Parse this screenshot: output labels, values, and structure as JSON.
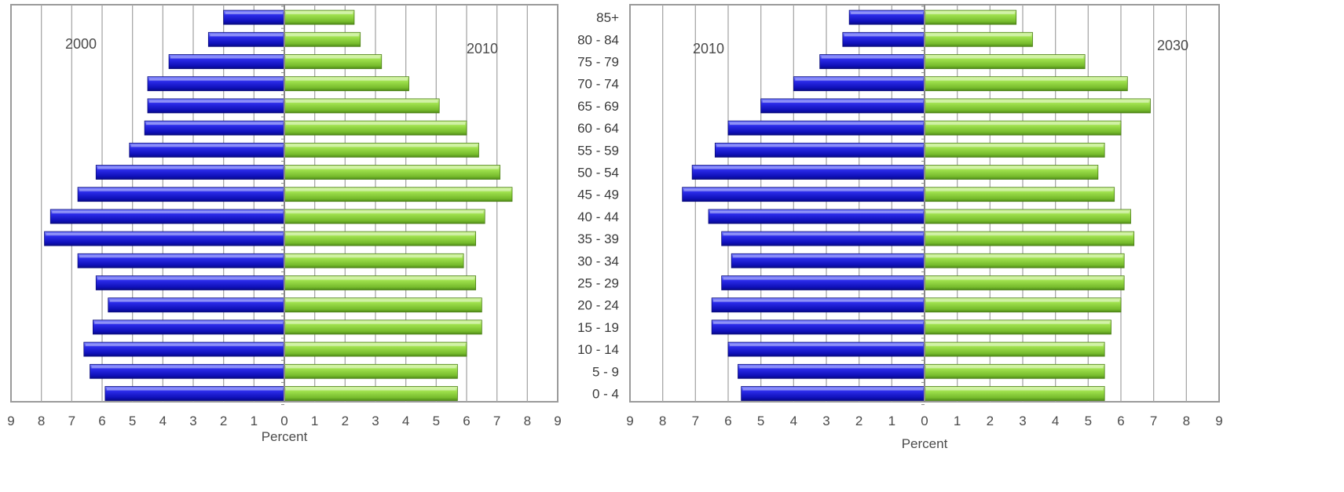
{
  "age_groups": [
    "85+",
    "80 - 84",
    "75 - 79",
    "70 - 74",
    "65 - 69",
    "60 - 64",
    "55 - 59",
    "50 - 54",
    "45 - 49",
    "40 - 44",
    "35 - 39",
    "30 - 34",
    "25 - 29",
    "20 - 24",
    "15 - 19",
    "10 - 14",
    "5 - 9",
    "0 - 4"
  ],
  "colors": {
    "left_series": "#1a1ad6",
    "right_series": "#8ed03c"
  },
  "chart_data": [
    {
      "type": "bar",
      "orientation": "horizontal",
      "layout": "population-pyramid",
      "title": "",
      "xlabel": "Percent",
      "ylabel": "",
      "xlim": [
        -9,
        9
      ],
      "x_ticks": [
        "9",
        "8",
        "7",
        "6",
        "5",
        "4",
        "3",
        "2",
        "1",
        "0",
        "1",
        "2",
        "3",
        "4",
        "5",
        "6",
        "7",
        "8",
        "9"
      ],
      "categories": [
        "85+",
        "80 - 84",
        "75 - 79",
        "70 - 74",
        "65 - 69",
        "60 - 64",
        "55 - 59",
        "50 - 54",
        "45 - 49",
        "40 - 44",
        "35 - 39",
        "30 - 34",
        "25 - 29",
        "20 - 24",
        "15 - 19",
        "10 - 14",
        "5 - 9",
        "0 - 4"
      ],
      "grid": true,
      "series": [
        {
          "name": "2000",
          "side": "left",
          "values": [
            2.0,
            2.5,
            3.8,
            4.5,
            4.5,
            4.6,
            5.1,
            6.2,
            6.8,
            7.7,
            7.9,
            6.8,
            6.2,
            5.8,
            6.3,
            6.6,
            6.4,
            5.9
          ]
        },
        {
          "name": "2010",
          "side": "right",
          "values": [
            2.3,
            2.5,
            3.2,
            4.1,
            5.1,
            6.0,
            6.4,
            7.1,
            7.5,
            6.6,
            6.3,
            5.9,
            6.3,
            6.5,
            6.5,
            6.0,
            5.7,
            5.7
          ]
        }
      ]
    },
    {
      "type": "bar",
      "orientation": "horizontal",
      "layout": "population-pyramid",
      "title": "",
      "xlabel": "Percent",
      "ylabel": "",
      "xlim": [
        -9,
        9
      ],
      "x_ticks": [
        "9",
        "8",
        "7",
        "6",
        "5",
        "4",
        "3",
        "2",
        "1",
        "0",
        "1",
        "2",
        "3",
        "4",
        "5",
        "6",
        "7",
        "8",
        "9"
      ],
      "categories": [
        "85+",
        "80 - 84",
        "75 - 79",
        "70 - 74",
        "65 - 69",
        "60 - 64",
        "55 - 59",
        "50 - 54",
        "45 - 49",
        "40 - 44",
        "35 - 39",
        "30 - 34",
        "25 - 29",
        "20 - 24",
        "15 - 19",
        "10 - 14",
        "5 - 9",
        "0 - 4"
      ],
      "grid": true,
      "series": [
        {
          "name": "2010",
          "side": "left",
          "values": [
            2.3,
            2.5,
            3.2,
            4.0,
            5.0,
            6.0,
            6.4,
            7.1,
            7.4,
            6.6,
            6.2,
            5.9,
            6.2,
            6.5,
            6.5,
            6.0,
            5.7,
            5.6
          ]
        },
        {
          "name": "2030",
          "side": "right",
          "values": [
            2.8,
            3.3,
            4.9,
            6.2,
            6.9,
            6.0,
            5.5,
            5.3,
            5.8,
            6.3,
            6.4,
            6.1,
            6.1,
            6.0,
            5.7,
            5.5,
            5.5,
            5.5
          ]
        }
      ]
    }
  ]
}
